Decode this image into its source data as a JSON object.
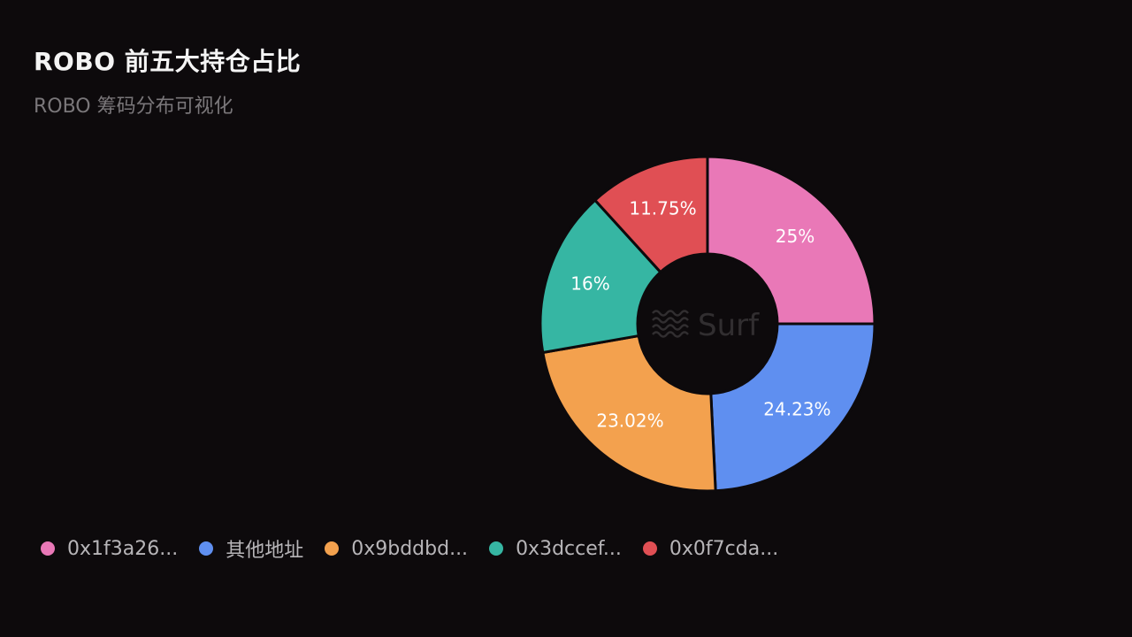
{
  "header": {
    "title": "ROBO 前五大持仓占比",
    "subtitle": "ROBO 筹码分布可视化"
  },
  "watermark": "Surf",
  "chart_data": {
    "type": "pie",
    "variant": "donut",
    "title": "ROBO 前五大持仓占比",
    "subtitle": "ROBO 筹码分布可视化",
    "legend_position": "bottom",
    "slices": [
      {
        "name": "0x1f3a26...",
        "value": 25,
        "label": "25%",
        "color": "#e978b7"
      },
      {
        "name": "其他地址",
        "value": 24.23,
        "label": "24.23%",
        "color": "#5f8ff0"
      },
      {
        "name": "0x9bddbd...",
        "value": 23.02,
        "label": "23.02%",
        "color": "#f3a14e"
      },
      {
        "name": "0x3dccef...",
        "value": 16,
        "label": "16%",
        "color": "#36b6a3"
      },
      {
        "name": "0x0f7cda...",
        "value": 11.75,
        "label": "11.75%",
        "color": "#e04f54"
      }
    ]
  }
}
